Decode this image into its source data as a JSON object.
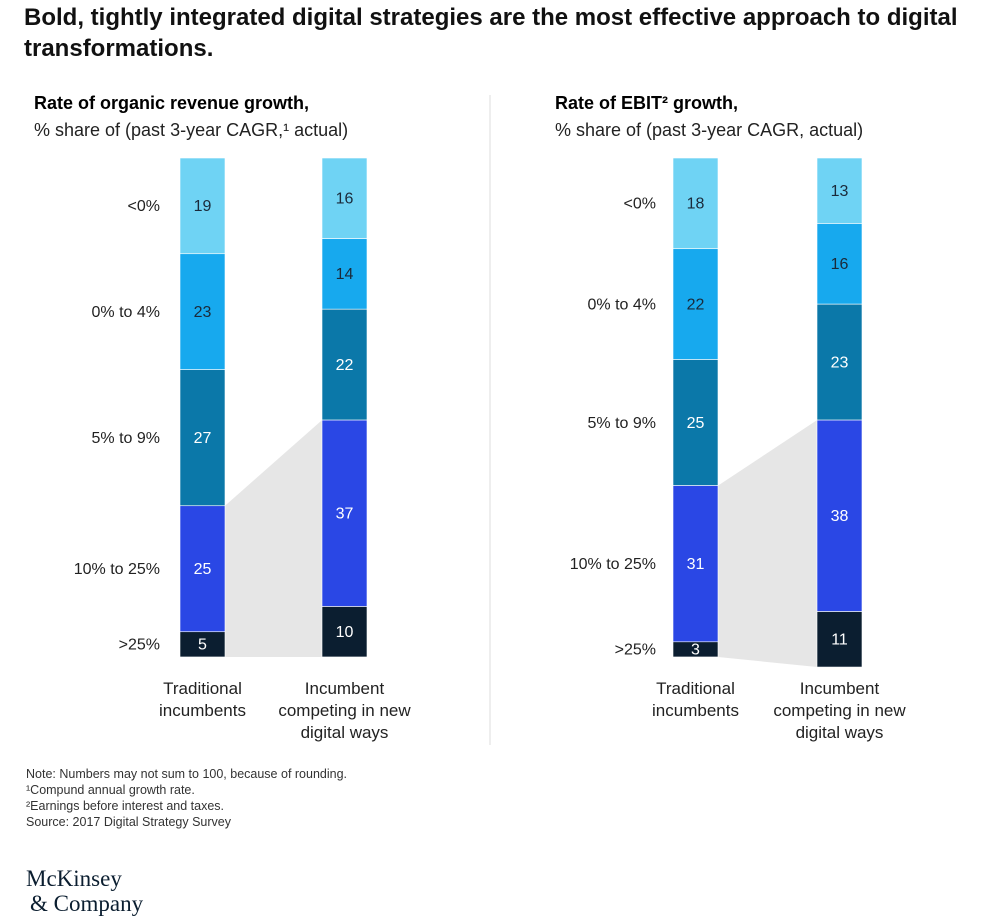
{
  "title": "Bold, tightly integrated digital strategies are the most effective approach to digital transformations.",
  "chart_data": [
    {
      "type": "bar",
      "stacked": true,
      "title": "Rate of organic revenue growth,",
      "subtitle": "% share of (past 3-year CAGR,¹ actual)",
      "categories": [
        "Traditional incumbents",
        "Incumbent competing in new digital ways"
      ],
      "ylim": [
        0,
        100
      ],
      "series": [
        {
          "name": "<0%",
          "color": "#6fd3f4",
          "values": [
            19,
            16
          ]
        },
        {
          "name": "0% to 4%",
          "color": "#17a9ee",
          "values": [
            23,
            14
          ]
        },
        {
          "name": "5% to 9%",
          "color": "#0b78a9",
          "values": [
            27,
            22
          ]
        },
        {
          "name": "10% to 25%",
          "color": "#2a47e5",
          "values": [
            25,
            37
          ]
        },
        {
          "name": ">25%",
          "color": "#0b1e30",
          "values": [
            5,
            10
          ]
        }
      ]
    },
    {
      "type": "bar",
      "stacked": true,
      "title": "Rate of EBIT² growth,",
      "subtitle": "% share of (past 3-year CAGR, actual)",
      "categories": [
        "Traditional incumbents",
        "Incumbent competing in new digital ways"
      ],
      "ylim": [
        0,
        100
      ],
      "series": [
        {
          "name": "<0%",
          "color": "#6fd3f4",
          "values": [
            18,
            13
          ]
        },
        {
          "name": "0% to 4%",
          "color": "#17a9ee",
          "values": [
            22,
            16
          ]
        },
        {
          "name": "5% to 9%",
          "color": "#0b78a9",
          "values": [
            25,
            23
          ]
        },
        {
          "name": "10% to 25%",
          "color": "#2a47e5",
          "values": [
            31,
            38
          ]
        },
        {
          "name": ">25%",
          "color": "#0b1e30",
          "values": [
            3,
            11
          ]
        }
      ]
    }
  ],
  "notes": [
    "Note: Numbers may not sum to 100, because of rounding.",
    "¹Compund annual growth rate.",
    "²Earnings before interest and taxes.",
    "Source: 2017 Digital Strategy Survey"
  ],
  "logo": [
    "McKinsey",
    "& Company"
  ]
}
